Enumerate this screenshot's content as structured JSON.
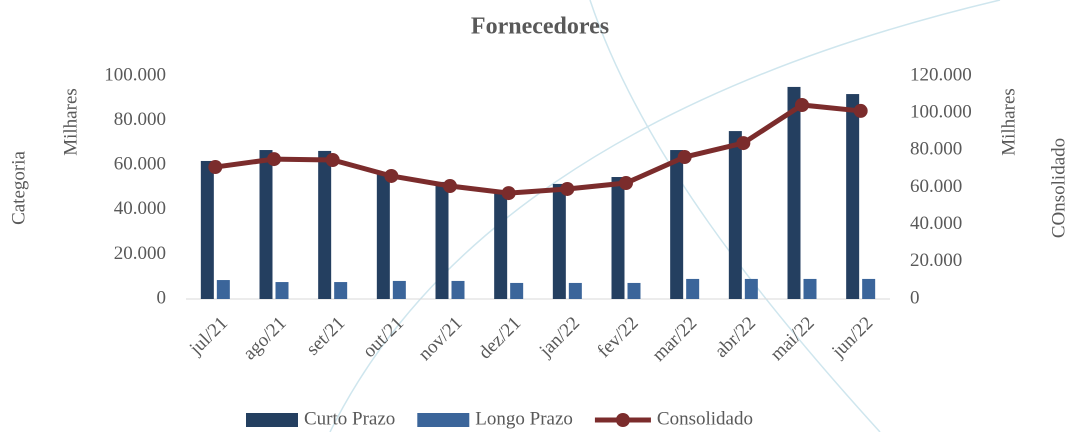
{
  "chart_data": {
    "type": "bar_line",
    "title": "Fornecedores",
    "y_label": "Categoria",
    "y_unit_label": "Milhares",
    "y2_label": "COnsolidado",
    "y2_unit_label": "Milhares",
    "categories": [
      "jul/21",
      "ago/21",
      "set/21",
      "out/21",
      "nov/21",
      "dez/21",
      "jan/22",
      "fev/22",
      "mar/22",
      "abr/22",
      "mai/22",
      "jun/22"
    ],
    "series": [
      {
        "name": "Curto Prazo",
        "kind": "bar",
        "color": "#243f60",
        "values": [
          61900,
          66800,
          66400,
          57000,
          52500,
          48900,
          51600,
          54700,
          66800,
          75300,
          95100,
          91900
        ]
      },
      {
        "name": "Longo Prazo",
        "kind": "bar",
        "color": "#3b659a",
        "values": [
          8500,
          7600,
          7600,
          8100,
          8100,
          7200,
          7200,
          7200,
          9000,
          9000,
          9000,
          9000
        ]
      },
      {
        "name": "Consolidado",
        "kind": "line",
        "axis": "y2",
        "color": "#7b2c2c",
        "values": [
          71000,
          75300,
          74800,
          66200,
          60800,
          57000,
          59200,
          62400,
          76400,
          83900,
          104400,
          101200
        ]
      }
    ],
    "ylim": [
      0,
      100000
    ],
    "yticks": [
      0,
      {
        "value": 20000,
        "label": "20.000"
      },
      {
        "value": 40000,
        "label": "40.000"
      },
      {
        "value": 60000,
        "label": "60.000"
      },
      {
        "value": 80000,
        "label": "80.000"
      },
      {
        "value": 100000,
        "label": "100.000"
      }
    ],
    "y2lim": [
      0,
      120000
    ],
    "y2ticks": [
      0,
      {
        "value": 20000,
        "label": "20.000"
      },
      {
        "value": 40000,
        "label": "40.000"
      },
      {
        "value": 60000,
        "label": "60.000"
      },
      {
        "value": 80000,
        "label": "80.000"
      },
      {
        "value": 100000,
        "label": "100.000"
      },
      {
        "value": 120000,
        "label": "120.000"
      }
    ],
    "legend": "bottom"
  }
}
